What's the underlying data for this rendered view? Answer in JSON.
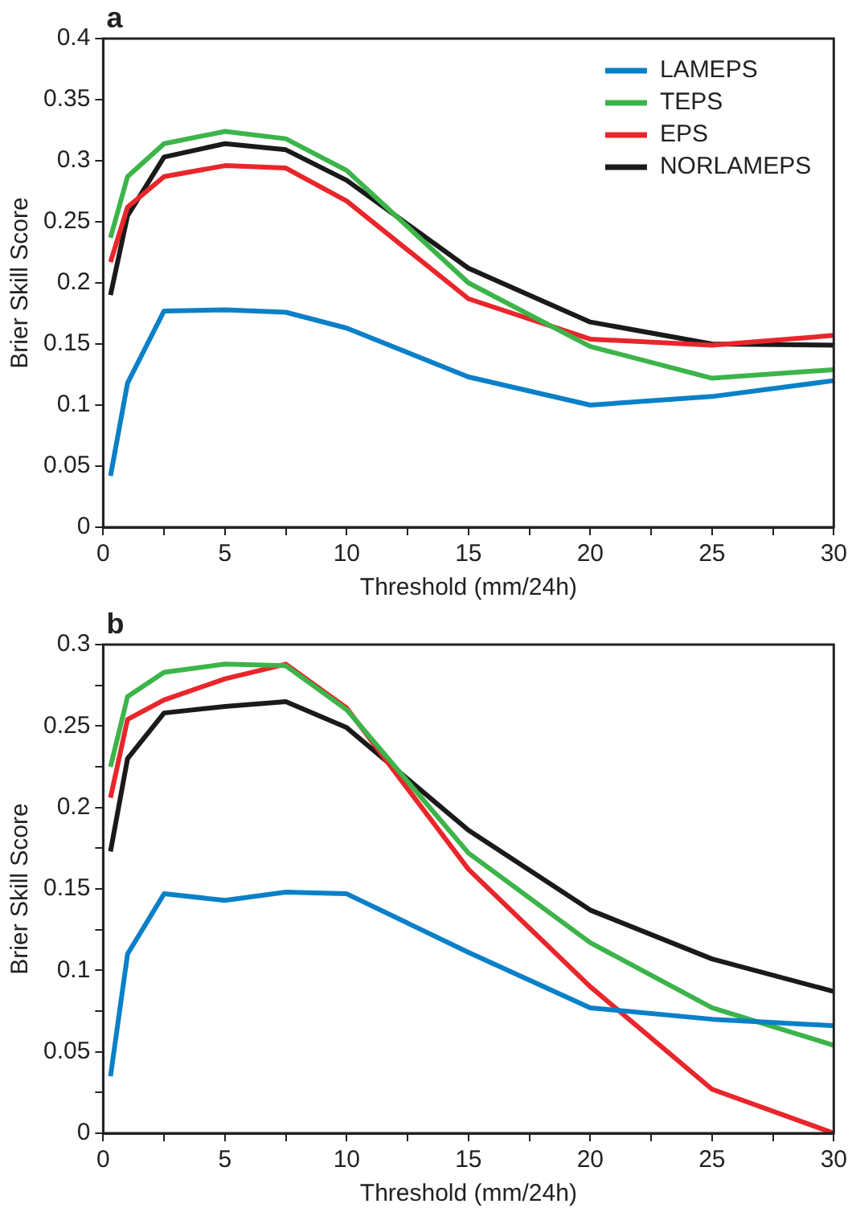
{
  "chart_data": [
    {
      "type": "line",
      "title": "a",
      "xlabel": "Threshold (mm/24h)",
      "ylabel": "Brier Skill Score",
      "x": [
        0.3,
        1,
        2.5,
        5,
        7.5,
        10,
        15,
        20,
        25,
        30
      ],
      "series": [
        {
          "name": "LAMEPS",
          "color": "#0a80c8",
          "values": [
            0.042,
            0.118,
            0.177,
            0.178,
            0.176,
            0.163,
            0.123,
            0.1,
            0.107,
            0.12
          ]
        },
        {
          "name": "TEPS",
          "color": "#3cb44a",
          "values": [
            0.237,
            0.287,
            0.314,
            0.324,
            0.318,
            0.292,
            0.2,
            0.148,
            0.122,
            0.129
          ]
        },
        {
          "name": "EPS",
          "color": "#e8262b",
          "values": [
            0.217,
            0.262,
            0.287,
            0.296,
            0.294,
            0.267,
            0.187,
            0.154,
            0.149,
            0.157
          ]
        },
        {
          "name": "NORLAMEPS",
          "color": "#1a1a1a",
          "values": [
            0.19,
            0.255,
            0.303,
            0.314,
            0.309,
            0.284,
            0.212,
            0.168,
            0.15,
            0.149
          ]
        }
      ],
      "xlim": [
        0,
        30
      ],
      "xticks": [
        0,
        {
          "value": 2.5,
          "label": null
        },
        5,
        {
          "value": 7.5,
          "label": null
        },
        10,
        {
          "value": 12.5,
          "label": null
        },
        15,
        {
          "value": 17.5,
          "label": null
        },
        20,
        {
          "value": 22.5,
          "label": null
        },
        25,
        {
          "value": 27.5,
          "label": null
        },
        30
      ],
      "ylim": [
        0,
        0.4
      ],
      "yticks": [
        0,
        0.05,
        0.1,
        0.15,
        0.2,
        0.25,
        0.3,
        0.35,
        0.4
      ],
      "grid": false,
      "legend": "top right",
      "marker": "none",
      "line_style": "solid"
    },
    {
      "type": "line",
      "title": "b",
      "xlabel": "Threshold (mm/24h)",
      "ylabel": "Brier Skill Score",
      "x": [
        0.3,
        1,
        2.5,
        5,
        7.5,
        10,
        15,
        20,
        25,
        30
      ],
      "series": [
        {
          "color": "#0a80c8",
          "values": [
            0.035,
            0.11,
            0.147,
            0.143,
            0.148,
            0.147,
            0.111,
            0.077,
            0.07,
            0.066
          ]
        },
        {
          "color": "#3cb44a",
          "values": [
            0.225,
            0.268,
            0.283,
            0.288,
            0.287,
            0.26,
            0.172,
            0.117,
            0.077,
            0.054
          ]
        },
        {
          "color": "#e8262b",
          "values": [
            0.206,
            0.254,
            0.266,
            0.279,
            0.288,
            0.261,
            0.162,
            0.09,
            0.027,
            0.0
          ]
        },
        {
          "color": "#1a1a1a",
          "values": [
            0.173,
            0.23,
            0.258,
            0.262,
            0.265,
            0.249,
            0.186,
            0.137,
            0.107,
            0.087
          ]
        }
      ],
      "xlim": [
        0,
        30
      ],
      "xticks": [
        0,
        {
          "value": 2.5,
          "label": null
        },
        5,
        {
          "value": 7.5,
          "label": null
        },
        10,
        {
          "value": 12.5,
          "label": null
        },
        15,
        {
          "value": 17.5,
          "label": null
        },
        20,
        {
          "value": 22.5,
          "label": null
        },
        25,
        {
          "value": 27.5,
          "label": null
        },
        30
      ],
      "ylim": [
        0,
        0.3
      ],
      "yticks": [
        0,
        {
          "value": 0.025,
          "label": null
        },
        0.05,
        {
          "value": 0.075,
          "label": null
        },
        0.1,
        {
          "value": 0.125,
          "label": null
        },
        0.15,
        {
          "value": 0.175,
          "label": null
        },
        0.2,
        {
          "value": 0.225,
          "label": null
        },
        0.25,
        {
          "value": 0.275,
          "label": null
        },
        0.3
      ],
      "grid": false,
      "legend": false,
      "marker": "none",
      "line_style": "solid"
    }
  ]
}
